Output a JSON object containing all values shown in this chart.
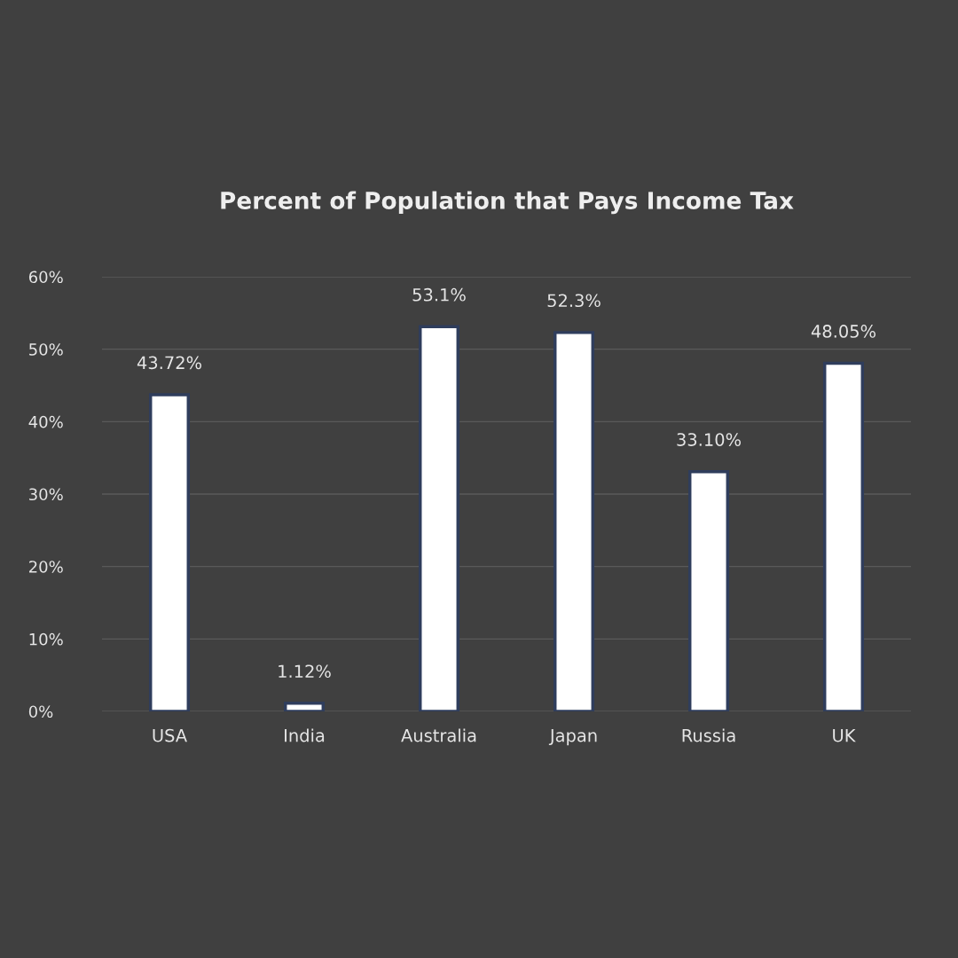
{
  "chart_data": {
    "type": "bar",
    "title": "Percent of Population that Pays Income Tax",
    "categories": [
      "USA",
      "India",
      "Australia",
      "Japan",
      "Russia",
      "UK"
    ],
    "values": [
      43.72,
      1.12,
      53.1,
      52.3,
      33.1,
      48.05
    ],
    "value_labels": [
      "43.72%",
      "1.12%",
      "53.1%",
      "52.3%",
      "33.10%",
      "48.05%"
    ],
    "color": "#ffffff",
    "ylim": [
      0,
      60
    ],
    "yticks": [
      {
        "value": 0,
        "label": "0%"
      },
      {
        "value": 10,
        "label": "10%"
      },
      {
        "value": 20,
        "label": "20%"
      },
      {
        "value": 30,
        "label": "30%"
      },
      {
        "value": 40,
        "label": "40%"
      },
      {
        "value": 50,
        "label": "50%"
      },
      {
        "value": 60,
        "label": "60%"
      }
    ],
    "grid": "y"
  }
}
